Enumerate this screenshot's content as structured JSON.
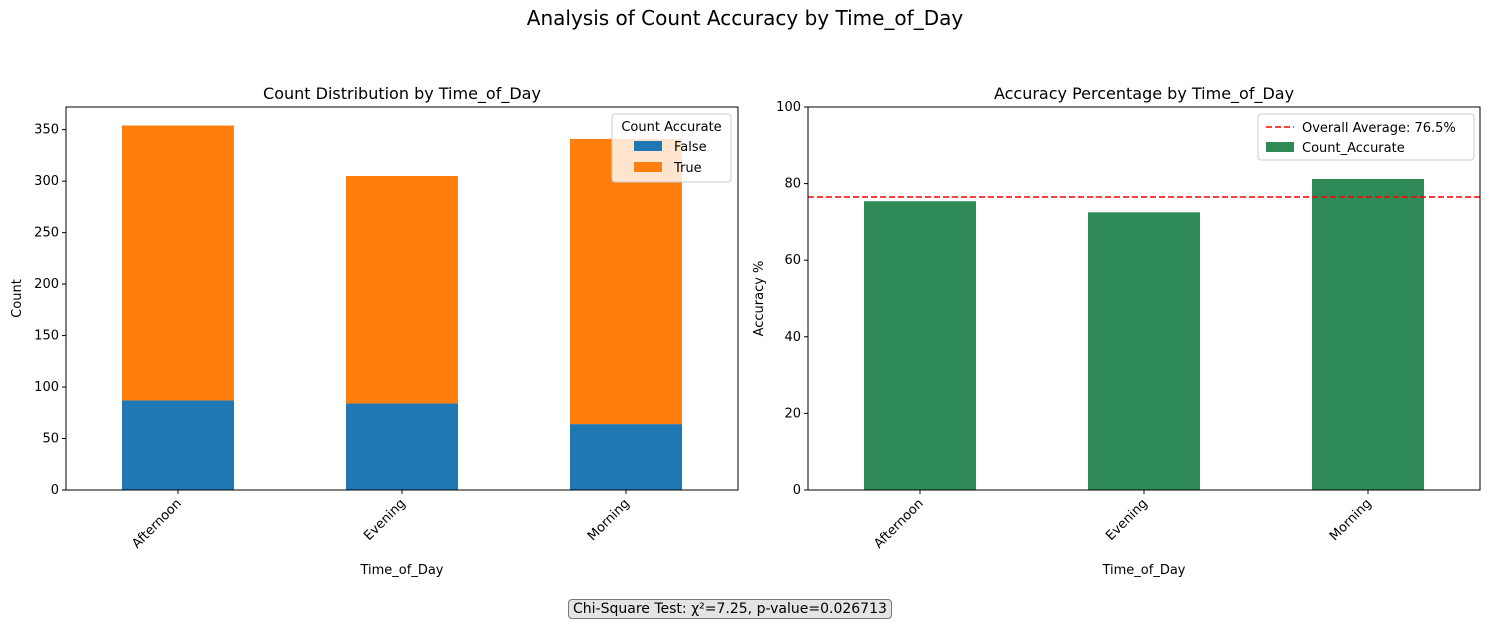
{
  "suptitle": "Analysis of Count Accuracy by Time_of_Day",
  "footnote": "Chi-Square Test: χ²=7.25, p-value=0.026713",
  "colors": {
    "false": "#1f77b4",
    "true": "#ff7f0e",
    "accuracy": "#2e8b57",
    "average_line": "#ff0000"
  },
  "chart_data": [
    {
      "type": "bar",
      "stacked": true,
      "title": "Count Distribution by Time_of_Day",
      "xlabel": "Time_of_Day",
      "ylabel": "Count",
      "categories": [
        "Afternoon",
        "Evening",
        "Morning"
      ],
      "ylim": [
        0,
        372
      ],
      "yticks": [
        0,
        50,
        100,
        150,
        200,
        250,
        300,
        350
      ],
      "legend_title": "Count Accurate",
      "legend_position": "top-right",
      "series": [
        {
          "name": "False",
          "values": [
            87,
            84,
            64
          ]
        },
        {
          "name": "True",
          "values": [
            267,
            221,
            277
          ]
        }
      ]
    },
    {
      "type": "bar",
      "title": "Accuracy Percentage by Time_of_Day",
      "xlabel": "Time_of_Day",
      "ylabel": "Accuracy %",
      "categories": [
        "Afternoon",
        "Evening",
        "Morning"
      ],
      "ylim": [
        0,
        100
      ],
      "yticks": [
        0,
        20,
        40,
        60,
        80,
        100
      ],
      "legend_position": "top-right",
      "series": [
        {
          "name": "Count_Accurate",
          "values": [
            75.4,
            72.5,
            81.2
          ]
        }
      ],
      "reference_line": {
        "label": "Overall Average: 76.5%",
        "value": 76.5,
        "style": "dashed"
      }
    }
  ]
}
